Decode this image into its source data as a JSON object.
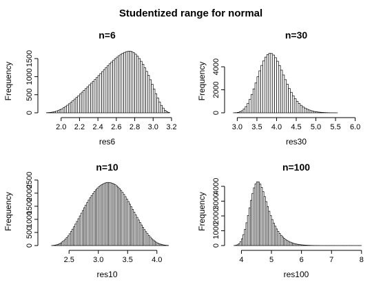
{
  "figure": {
    "title": "Studentized range for normal"
  },
  "chart_data": [
    {
      "type": "bar",
      "title": "n=6",
      "xlabel": "res6",
      "ylabel": "Frequency",
      "xlim": [
        1.8,
        3.2
      ],
      "ylim": [
        0,
        1750
      ],
      "xticks": [
        2.0,
        2.2,
        2.4,
        2.6,
        2.8,
        3.0,
        3.2
      ],
      "xtick_labels": [
        "2.0",
        "2.2",
        "2.4",
        "2.6",
        "2.8",
        "3.0",
        "3.2"
      ],
      "yticks": [
        0,
        500,
        1000,
        1500
      ],
      "ytick_labels": [
        "0",
        "500",
        "1000",
        "1500"
      ],
      "bin_start": 1.84,
      "bin_width": 0.02,
      "values": [
        4,
        8,
        12,
        20,
        30,
        44,
        62,
        85,
        110,
        140,
        175,
        210,
        250,
        290,
        335,
        380,
        425,
        470,
        520,
        570,
        620,
        670,
        720,
        770,
        820,
        870,
        920,
        975,
        1030,
        1085,
        1140,
        1195,
        1250,
        1300,
        1355,
        1405,
        1450,
        1495,
        1540,
        1580,
        1615,
        1645,
        1670,
        1690,
        1700,
        1705,
        1690,
        1660,
        1620,
        1565,
        1500,
        1425,
        1340,
        1245,
        1145,
        1035,
        915,
        790,
        660,
        530,
        410,
        300,
        205,
        130,
        70,
        30,
        10
      ]
    },
    {
      "type": "bar",
      "title": "n=30",
      "xlabel": "res30",
      "ylabel": "Frequency",
      "xlim": [
        2.8,
        6.2
      ],
      "ylim": [
        0,
        5500
      ],
      "xticks": [
        3.0,
        3.5,
        4.0,
        4.5,
        5.0,
        5.5,
        6.0
      ],
      "xtick_labels": [
        "3.0",
        "3.5",
        "4.0",
        "4.5",
        "5.0",
        "5.5",
        "6.0"
      ],
      "yticks": [
        0,
        2000,
        4000
      ],
      "ytick_labels": [
        "0",
        "2000",
        "4000"
      ],
      "bin_start": 2.9,
      "bin_width": 0.05,
      "values": [
        5,
        15,
        40,
        90,
        180,
        330,
        540,
        820,
        1180,
        1600,
        2080,
        2600,
        3130,
        3650,
        4120,
        4520,
        4840,
        5060,
        5170,
        5150,
        5020,
        4790,
        4480,
        4110,
        3710,
        3290,
        2880,
        2480,
        2110,
        1780,
        1480,
        1220,
        1000,
        810,
        650,
        520,
        410,
        320,
        250,
        190,
        145,
        110,
        82,
        60,
        44,
        32,
        22,
        15,
        10,
        6,
        4,
        2,
        1
      ]
    },
    {
      "type": "bar",
      "title": "n=10",
      "xlabel": "res10",
      "ylabel": "Frequency",
      "xlim": [
        2.05,
        4.25
      ],
      "ylim": [
        0,
        2600
      ],
      "xticks": [
        2.5,
        3.0,
        3.5,
        4.0
      ],
      "xtick_labels": [
        "2.5",
        "3.0",
        "3.5",
        "4.0"
      ],
      "yticks": [
        0,
        500,
        1000,
        1500,
        2000,
        2500
      ],
      "ytick_labels": [
        "0",
        "500",
        "1000",
        "1500",
        "2000",
        "2500"
      ],
      "bin_start": 2.2,
      "bin_width": 0.025,
      "values": [
        3,
        8,
        16,
        28,
        46,
        70,
        100,
        140,
        185,
        240,
        300,
        370,
        450,
        535,
        625,
        720,
        820,
        920,
        1025,
        1130,
        1235,
        1340,
        1445,
        1545,
        1640,
        1735,
        1825,
        1910,
        1990,
        2065,
        2130,
        2190,
        2245,
        2290,
        2330,
        2360,
        2385,
        2400,
        2410,
        2405,
        2395,
        2380,
        2355,
        2320,
        2280,
        2230,
        2170,
        2105,
        2030,
        1950,
        1865,
        1775,
        1680,
        1580,
        1480,
        1380,
        1275,
        1175,
        1075,
        975,
        880,
        785,
        695,
        610,
        530,
        455,
        385,
        320,
        262,
        212,
        168,
        130,
        98,
        72,
        52,
        36,
        24,
        15,
        9,
        5
      ]
    },
    {
      "type": "bar",
      "title": "n=100",
      "xlabel": "res100",
      "ylabel": "Frequency",
      "xlim": [
        3.6,
        8.05
      ],
      "ylim": [
        0,
        4600
      ],
      "xticks": [
        4,
        5,
        6,
        7,
        8
      ],
      "xtick_labels": [
        "4",
        "5",
        "6",
        "7",
        "8"
      ],
      "yticks": [
        0,
        1000,
        2000,
        3000,
        4000
      ],
      "ytick_labels": [
        "0",
        "1000",
        "2000",
        "3000",
        "4000"
      ],
      "bin_start": 3.75,
      "bin_width": 0.05,
      "values": [
        5,
        20,
        55,
        130,
        260,
        460,
        740,
        1100,
        1540,
        2030,
        2550,
        3060,
        3520,
        3900,
        4170,
        4300,
        4290,
        4160,
        3930,
        3640,
        3310,
        2970,
        2640,
        2320,
        2030,
        1760,
        1520,
        1310,
        1120,
        955,
        810,
        685,
        578,
        485,
        405,
        338,
        280,
        232,
        191,
        157,
        128,
        104,
        84,
        68,
        55,
        44,
        35,
        28,
        22,
        17,
        13,
        10,
        8,
        6,
        5,
        4,
        3,
        2,
        2,
        1,
        1,
        1,
        1,
        1,
        1,
        1,
        1,
        1,
        1,
        1,
        1,
        1,
        1,
        1,
        1,
        1,
        1,
        1,
        1,
        1,
        1,
        1,
        1,
        1,
        1
      ]
    }
  ]
}
